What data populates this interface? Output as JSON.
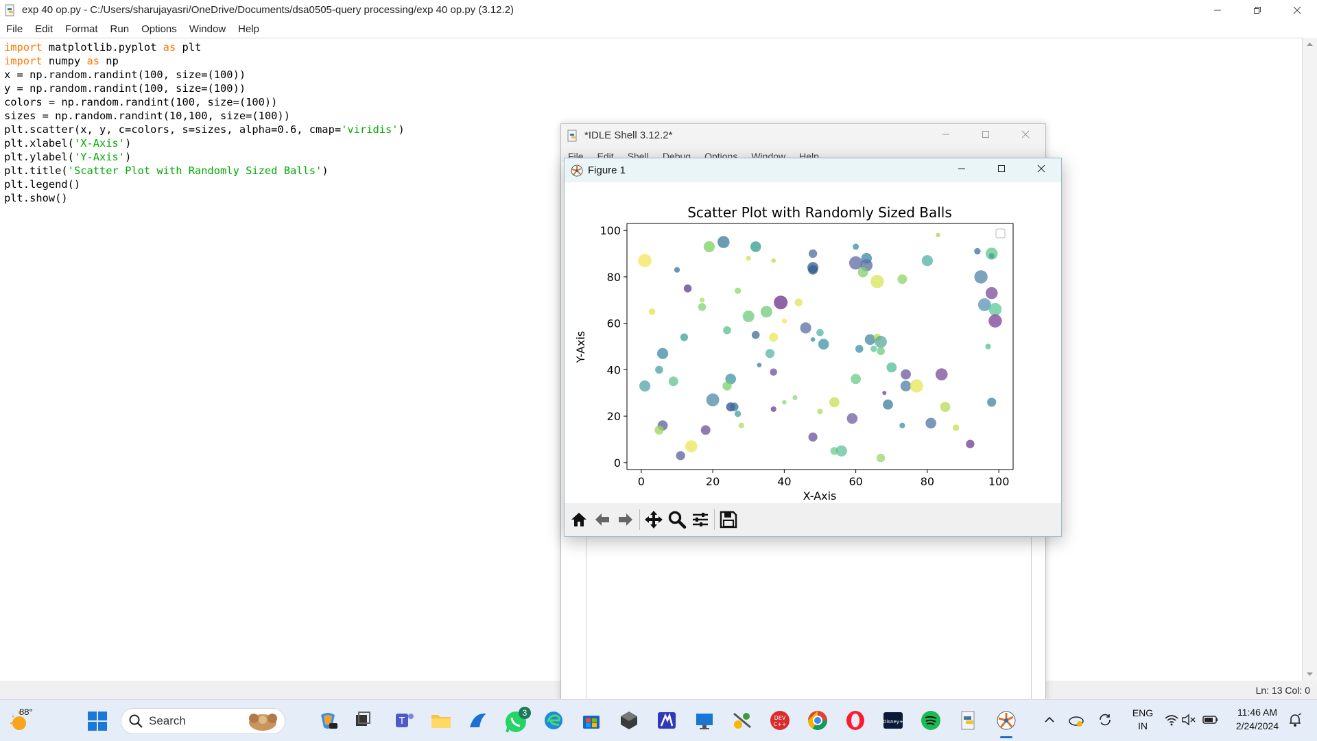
{
  "editor": {
    "title": "exp 40 op.py - C:/Users/sharujayasri/OneDrive/Documents/dsa0505-query processing/exp 40 op.py (3.12.2)",
    "menu": [
      "File",
      "Edit",
      "Format",
      "Run",
      "Options",
      "Window",
      "Help"
    ],
    "code": [
      [
        {
          "t": "import",
          "c": "kw"
        },
        {
          "t": " matplotlib.pyplot "
        },
        {
          "t": "as",
          "c": "kw"
        },
        {
          "t": " plt"
        }
      ],
      [
        {
          "t": "import",
          "c": "kw"
        },
        {
          "t": " numpy "
        },
        {
          "t": "as",
          "c": "kw"
        },
        {
          "t": " np"
        }
      ],
      [
        {
          "t": "x = np.random.randint(100, size=(100))"
        }
      ],
      [
        {
          "t": "y = np.random.randint(100, size=(100))"
        }
      ],
      [
        {
          "t": "colors = np.random.randint(100, size=(100))"
        }
      ],
      [
        {
          "t": "sizes = np.random.randint(10,100, size=(100))"
        }
      ],
      [
        {
          "t": "plt.scatter(x, y, c=colors, s=sizes, alpha=0.6, cmap="
        },
        {
          "t": "'viridis'",
          "c": "str"
        },
        {
          "t": ")"
        }
      ],
      [
        {
          "t": "plt.xlabel("
        },
        {
          "t": "'X-Axis'",
          "c": "str"
        },
        {
          "t": ")"
        }
      ],
      [
        {
          "t": "plt.ylabel("
        },
        {
          "t": "'Y-Axis'",
          "c": "str"
        },
        {
          "t": ")"
        }
      ],
      [
        {
          "t": "plt.title("
        },
        {
          "t": "'Scatter Plot with Randomly Sized Balls'",
          "c": "str"
        },
        {
          "t": ")"
        }
      ],
      [
        {
          "t": "plt.legend()"
        }
      ],
      [
        {
          "t": "plt.show()"
        }
      ]
    ],
    "status": "Ln: 13   Col: 0"
  },
  "shell": {
    "title": "*IDLE Shell 3.12.2*",
    "menu": [
      "File",
      "Edit",
      "Shell",
      "Debug",
      "Options",
      "Window",
      "Help"
    ]
  },
  "figure": {
    "window_title": "Figure 1",
    "toolbar_tools": [
      "home-icon",
      "back-arrow-icon",
      "forward-arrow-icon",
      "pan-icon",
      "zoom-icon",
      "configure-subplots-icon",
      "save-icon"
    ]
  },
  "chart_data": {
    "type": "scatter",
    "title": "Scatter Plot with Randomly Sized Balls",
    "xlabel": "X-Axis",
    "ylabel": "Y-Axis",
    "xlim": [
      -4,
      104
    ],
    "ylim": [
      -3,
      103
    ],
    "xticks": [
      0,
      20,
      40,
      60,
      80,
      100
    ],
    "yticks": [
      0,
      20,
      40,
      60,
      80,
      100
    ],
    "legend": "empty box, top-right",
    "colormap": "viridis",
    "points": [
      {
        "x": 1,
        "y": 87,
        "s": 85,
        "c": "#f4e55b"
      },
      {
        "x": 10,
        "y": 83,
        "s": 15,
        "c": "#3e6f99"
      },
      {
        "x": 13,
        "y": 75,
        "s": 30,
        "c": "#5b3b8f"
      },
      {
        "x": 19,
        "y": 93,
        "s": 60,
        "c": "#7ad062"
      },
      {
        "x": 23,
        "y": 95,
        "s": 70,
        "c": "#3c7a9b"
      },
      {
        "x": 30,
        "y": 88,
        "s": 12,
        "c": "#cfe24a"
      },
      {
        "x": 32,
        "y": 93,
        "s": 55,
        "c": "#2f9b8c"
      },
      {
        "x": 37,
        "y": 87,
        "s": 10,
        "c": "#b8de4e"
      },
      {
        "x": 48,
        "y": 90,
        "s": 35,
        "c": "#4d6b9a"
      },
      {
        "x": 48,
        "y": 84,
        "s": 60,
        "c": "#3a5c8c"
      },
      {
        "x": 48,
        "y": 83,
        "s": 45,
        "c": "#315d8f"
      },
      {
        "x": 60,
        "y": 93,
        "s": 18,
        "c": "#3a8f9e"
      },
      {
        "x": 63,
        "y": 88,
        "s": 55,
        "c": "#3a86a0"
      },
      {
        "x": 63,
        "y": 85,
        "s": 70,
        "c": "#5a6ca2"
      },
      {
        "x": 60,
        "y": 86,
        "s": 85,
        "c": "#5d6aa2"
      },
      {
        "x": 62,
        "y": 82,
        "s": 50,
        "c": "#82d26a"
      },
      {
        "x": 66,
        "y": 78,
        "s": 85,
        "c": "#d8e455"
      },
      {
        "x": 73,
        "y": 79,
        "s": 45,
        "c": "#8ed46b"
      },
      {
        "x": 80,
        "y": 87,
        "s": 60,
        "c": "#4fb0a0"
      },
      {
        "x": 83,
        "y": 98,
        "s": 10,
        "c": "#9bd95a"
      },
      {
        "x": 94,
        "y": 91,
        "s": 20,
        "c": "#3b7295"
      },
      {
        "x": 98,
        "y": 90,
        "s": 70,
        "c": "#5ec58a"
      },
      {
        "x": 98,
        "y": 89,
        "s": 15,
        "c": "#3f9d9a"
      },
      {
        "x": 95,
        "y": 80,
        "s": 85,
        "c": "#4f84a8"
      },
      {
        "x": 98,
        "y": 73,
        "s": 70,
        "c": "#7a4a9a"
      },
      {
        "x": 96,
        "y": 68,
        "s": 80,
        "c": "#5791b3"
      },
      {
        "x": 99,
        "y": 66,
        "s": 80,
        "c": "#5dc79a"
      },
      {
        "x": 99,
        "y": 61,
        "s": 85,
        "c": "#7a3f95"
      },
      {
        "x": 97,
        "y": 50,
        "s": 15,
        "c": "#56c08d"
      },
      {
        "x": 98,
        "y": 26,
        "s": 40,
        "c": "#3e84a0"
      },
      {
        "x": 3,
        "y": 65,
        "s": 22,
        "c": "#dfe657"
      },
      {
        "x": 17,
        "y": 70,
        "s": 12,
        "c": "#abdf5e"
      },
      {
        "x": 17,
        "y": 67,
        "s": 30,
        "c": "#7fd17a"
      },
      {
        "x": 27,
        "y": 74,
        "s": 20,
        "c": "#8fd571"
      },
      {
        "x": 39,
        "y": 69,
        "s": 90,
        "c": "#6e2f86"
      },
      {
        "x": 44,
        "y": 69,
        "s": 30,
        "c": "#e1e35a"
      },
      {
        "x": 35,
        "y": 65,
        "s": 65,
        "c": "#70c97b"
      },
      {
        "x": 30,
        "y": 63,
        "s": 65,
        "c": "#70c97b"
      },
      {
        "x": 40,
        "y": 61,
        "s": 12,
        "c": "#f3e260"
      },
      {
        "x": 24,
        "y": 57,
        "s": 30,
        "c": "#55bd8d"
      },
      {
        "x": 12,
        "y": 54,
        "s": 28,
        "c": "#37a291"
      },
      {
        "x": 32,
        "y": 55,
        "s": 30,
        "c": "#3c6a96"
      },
      {
        "x": 37,
        "y": 54,
        "s": 40,
        "c": "#e9e757"
      },
      {
        "x": 46,
        "y": 58,
        "s": 60,
        "c": "#566fa0"
      },
      {
        "x": 50,
        "y": 56,
        "s": 25,
        "c": "#4fb6a3"
      },
      {
        "x": 48,
        "y": 53,
        "s": 10,
        "c": "#2f9294"
      },
      {
        "x": 51,
        "y": 51,
        "s": 55,
        "c": "#3e93a3"
      },
      {
        "x": 6,
        "y": 47,
        "s": 60,
        "c": "#3c8ba2"
      },
      {
        "x": 36,
        "y": 47,
        "s": 40,
        "c": "#53b6a6"
      },
      {
        "x": 61,
        "y": 49,
        "s": 30,
        "c": "#3e8fa2"
      },
      {
        "x": 64,
        "y": 53,
        "s": 55,
        "c": "#4685a0"
      },
      {
        "x": 66,
        "y": 54,
        "s": 25,
        "c": "#b8db4c"
      },
      {
        "x": 67,
        "y": 52,
        "s": 70,
        "c": "#5aa79e"
      },
      {
        "x": 65,
        "y": 49,
        "s": 20,
        "c": "#5ac69a"
      },
      {
        "x": 67,
        "y": 48,
        "s": 30,
        "c": "#6fcc7d"
      },
      {
        "x": 33,
        "y": 42,
        "s": 10,
        "c": "#3c7796"
      },
      {
        "x": 37,
        "y": 39,
        "s": 25,
        "c": "#6a4d97"
      },
      {
        "x": 70,
        "y": 41,
        "s": 50,
        "c": "#52bb9c"
      },
      {
        "x": 74,
        "y": 38,
        "s": 50,
        "c": "#6a5a9d"
      },
      {
        "x": 84,
        "y": 38,
        "s": 70,
        "c": "#7a4b94"
      },
      {
        "x": 5,
        "y": 40,
        "s": 30,
        "c": "#4aa0a3"
      },
      {
        "x": 1,
        "y": 33,
        "s": 60,
        "c": "#52a3a7"
      },
      {
        "x": 9,
        "y": 35,
        "s": 45,
        "c": "#5fc48c"
      },
      {
        "x": 25,
        "y": 36,
        "s": 55,
        "c": "#3f93a3"
      },
      {
        "x": 24,
        "y": 33,
        "s": 40,
        "c": "#79d16b"
      },
      {
        "x": 60,
        "y": 36,
        "s": 50,
        "c": "#69c987"
      },
      {
        "x": 74,
        "y": 33,
        "s": 55,
        "c": "#4e7ba7"
      },
      {
        "x": 77,
        "y": 33,
        "s": 85,
        "c": "#e9e659"
      },
      {
        "x": 68,
        "y": 30,
        "s": 8,
        "c": "#6a3f93"
      },
      {
        "x": 20,
        "y": 27,
        "s": 80,
        "c": "#4e8aa8"
      },
      {
        "x": 25,
        "y": 24,
        "s": 40,
        "c": "#314f89"
      },
      {
        "x": 26,
        "y": 24,
        "s": 35,
        "c": "#3c6c9d"
      },
      {
        "x": 27,
        "y": 21,
        "s": 20,
        "c": "#3aa69a"
      },
      {
        "x": 28,
        "y": 16,
        "s": 15,
        "c": "#b2dc56"
      },
      {
        "x": 40,
        "y": 26,
        "s": 10,
        "c": "#94d56f"
      },
      {
        "x": 43,
        "y": 28,
        "s": 12,
        "c": "#89d37b"
      },
      {
        "x": 37,
        "y": 23,
        "s": 15,
        "c": "#6a3d93"
      },
      {
        "x": 50,
        "y": 22,
        "s": 15,
        "c": "#aade5c"
      },
      {
        "x": 54,
        "y": 26,
        "s": 50,
        "c": "#c9df55"
      },
      {
        "x": 59,
        "y": 19,
        "s": 55,
        "c": "#6c5d9e"
      },
      {
        "x": 69,
        "y": 25,
        "s": 50,
        "c": "#3c7ba0"
      },
      {
        "x": 73,
        "y": 16,
        "s": 15,
        "c": "#3e90a0"
      },
      {
        "x": 81,
        "y": 17,
        "s": 55,
        "c": "#4d74a6"
      },
      {
        "x": 85,
        "y": 24,
        "s": 50,
        "c": "#b8da56"
      },
      {
        "x": 88,
        "y": 15,
        "s": 20,
        "c": "#c3df55"
      },
      {
        "x": 6,
        "y": 16,
        "s": 50,
        "c": "#5a5f9e"
      },
      {
        "x": 5,
        "y": 14,
        "s": 40,
        "c": "#9ed65a"
      },
      {
        "x": 18,
        "y": 14,
        "s": 45,
        "c": "#6a4f98"
      },
      {
        "x": 14,
        "y": 7,
        "s": 70,
        "c": "#e9e659"
      },
      {
        "x": 11,
        "y": 3,
        "s": 40,
        "c": "#5a5f9e"
      },
      {
        "x": 48,
        "y": 11,
        "s": 40,
        "c": "#6a4f98"
      },
      {
        "x": 54,
        "y": 5,
        "s": 30,
        "c": "#6cc98a"
      },
      {
        "x": 56,
        "y": 5,
        "s": 60,
        "c": "#5ec39a"
      },
      {
        "x": 67,
        "y": 2,
        "s": 35,
        "c": "#94d56f"
      },
      {
        "x": 92,
        "y": 8,
        "s": 35,
        "c": "#6b3d90"
      }
    ]
  },
  "taskbar": {
    "weather_temp": "88°",
    "search_placeholder": "Search",
    "whatsapp_badge": "3",
    "lang_line1": "ENG",
    "lang_line2": "IN",
    "time": "11:46 AM",
    "date": "2/24/2024"
  }
}
